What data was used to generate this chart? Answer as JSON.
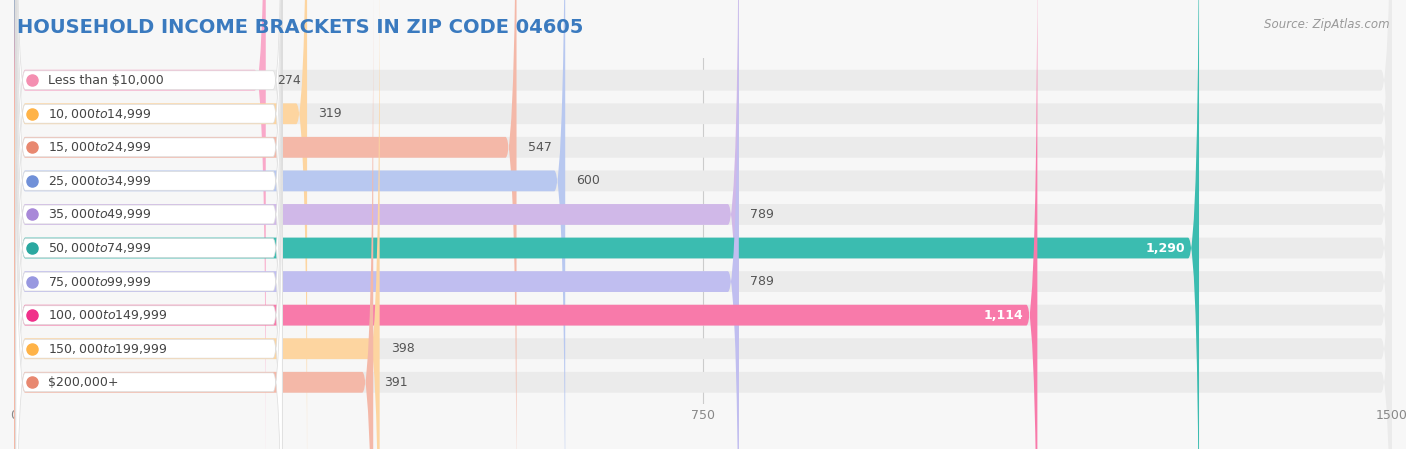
{
  "title": "HOUSEHOLD INCOME BRACKETS IN ZIP CODE 04605",
  "source": "Source: ZipAtlas.com",
  "categories": [
    "Less than $10,000",
    "$10,000 to $14,999",
    "$15,000 to $24,999",
    "$25,000 to $34,999",
    "$35,000 to $49,999",
    "$50,000 to $74,999",
    "$75,000 to $99,999",
    "$100,000 to $149,999",
    "$150,000 to $199,999",
    "$200,000+"
  ],
  "values": [
    274,
    319,
    547,
    600,
    789,
    1290,
    789,
    1114,
    398,
    391
  ],
  "bar_colors": [
    "#f9a8c9",
    "#fdd5a0",
    "#f4b8a8",
    "#b8c8f0",
    "#d0b8e8",
    "#3bbcb0",
    "#c0bef0",
    "#f87aaa",
    "#fdd5a0",
    "#f4b8a8"
  ],
  "dot_colors": [
    "#f48fb1",
    "#ffb347",
    "#e88870",
    "#7090d8",
    "#a888d8",
    "#2aa8a0",
    "#9898e0",
    "#f0308a",
    "#ffb347",
    "#e88870"
  ],
  "xlim": [
    0,
    1500
  ],
  "xticks": [
    0,
    750,
    1500
  ],
  "background_color": "#f7f7f7",
  "bar_bg_color": "#ebebeb",
  "title_color": "#3a7abf",
  "title_fontsize": 14,
  "label_fontsize": 9,
  "value_fontsize": 9,
  "source_fontsize": 8.5,
  "source_color": "#999999"
}
